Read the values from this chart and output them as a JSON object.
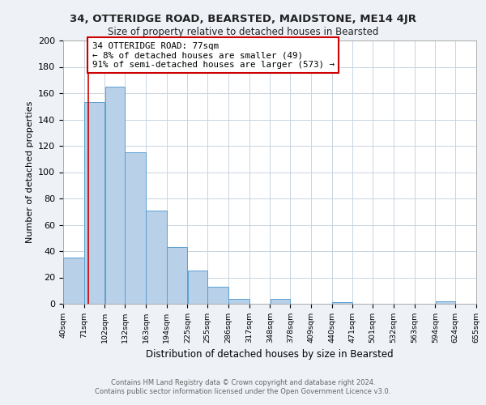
{
  "title1": "34, OTTERIDGE ROAD, BEARSTED, MAIDSTONE, ME14 4JR",
  "title2": "Size of property relative to detached houses in Bearsted",
  "xlabel": "Distribution of detached houses by size in Bearsted",
  "ylabel": "Number of detached properties",
  "bin_edges": [
    40,
    71,
    102,
    132,
    163,
    194,
    225,
    255,
    286,
    317,
    348,
    378,
    409,
    440,
    471,
    501,
    532,
    563,
    594,
    624,
    655
  ],
  "bin_labels": [
    "40sqm",
    "71sqm",
    "102sqm",
    "132sqm",
    "163sqm",
    "194sqm",
    "225sqm",
    "255sqm",
    "286sqm",
    "317sqm",
    "348sqm",
    "378sqm",
    "409sqm",
    "440sqm",
    "471sqm",
    "501sqm",
    "532sqm",
    "563sqm",
    "594sqm",
    "624sqm",
    "655sqm"
  ],
  "counts": [
    35,
    153,
    165,
    115,
    71,
    43,
    25,
    13,
    4,
    0,
    4,
    0,
    0,
    1,
    0,
    0,
    0,
    0,
    2,
    0
  ],
  "bar_color": "#b8d0e8",
  "bar_edge_color": "#5a9fd4",
  "property_line_x": 77,
  "property_line_color": "#cc0000",
  "annotation_text": "34 OTTERIDGE ROAD: 77sqm\n← 8% of detached houses are smaller (49)\n91% of semi-detached houses are larger (573) →",
  "annotation_box_color": "#ffffff",
  "annotation_box_edge_color": "#cc0000",
  "ylim": [
    0,
    200
  ],
  "yticks": [
    0,
    20,
    40,
    60,
    80,
    100,
    120,
    140,
    160,
    180,
    200
  ],
  "footer1": "Contains HM Land Registry data © Crown copyright and database right 2024.",
  "footer2": "Contains public sector information licensed under the Open Government Licence v3.0.",
  "bg_color": "#eef2f7",
  "plot_bg_color": "#ffffff",
  "grid_color": "#c8d4e0"
}
